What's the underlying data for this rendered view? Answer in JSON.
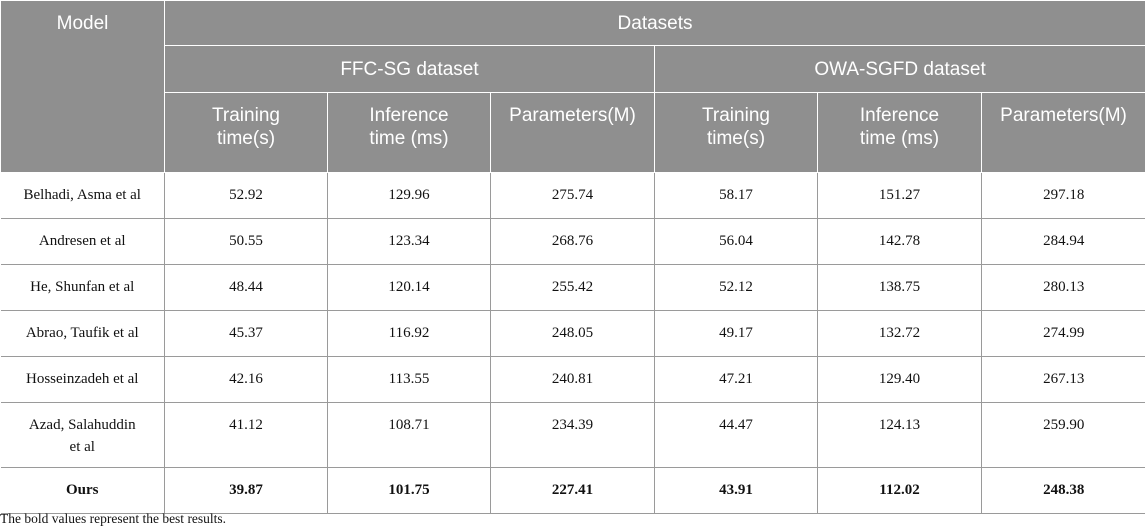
{
  "header": {
    "model": "Model",
    "datasets": "Datasets",
    "groups": [
      "FFC-SG dataset",
      "OWA-SGFD dataset"
    ],
    "columns": [
      [
        "Training",
        "time(s)"
      ],
      [
        "Inference",
        "time (ms)"
      ],
      [
        "Parameters(M)",
        ""
      ],
      [
        "Training",
        "time(s)"
      ],
      [
        "Inference",
        "time (ms)"
      ],
      [
        "Parameters(M)",
        ""
      ]
    ]
  },
  "rows": [
    {
      "model": "Belhadi, Asma et al",
      "values": [
        "52.92",
        "129.96",
        "275.74",
        "58.17",
        "151.27",
        "297.18"
      ]
    },
    {
      "model": "Andresen et al",
      "values": [
        "50.55",
        "123.34",
        "268.76",
        "56.04",
        "142.78",
        "284.94"
      ]
    },
    {
      "model": "He, Shunfan et al",
      "values": [
        "48.44",
        "120.14",
        "255.42",
        "52.12",
        "138.75",
        "280.13"
      ]
    },
    {
      "model": "Abrao, Taufik et al",
      "values": [
        "45.37",
        "116.92",
        "248.05",
        "49.17",
        "132.72",
        "274.99"
      ]
    },
    {
      "model": "Hosseinzadeh et al",
      "values": [
        "42.16",
        "113.55",
        "240.81",
        "47.21",
        "129.40",
        "267.13"
      ]
    },
    {
      "model_line1": "Azad, Salahuddin",
      "model_line2": "et al",
      "values": [
        "41.12",
        "108.71",
        "234.39",
        "44.47",
        "124.13",
        "259.90"
      ]
    }
  ],
  "ours": {
    "model": "Ours",
    "values": [
      "39.87",
      "101.75",
      "227.41",
      "43.91",
      "112.02",
      "248.38"
    ]
  },
  "footnote": "The bold values represent the best results."
}
